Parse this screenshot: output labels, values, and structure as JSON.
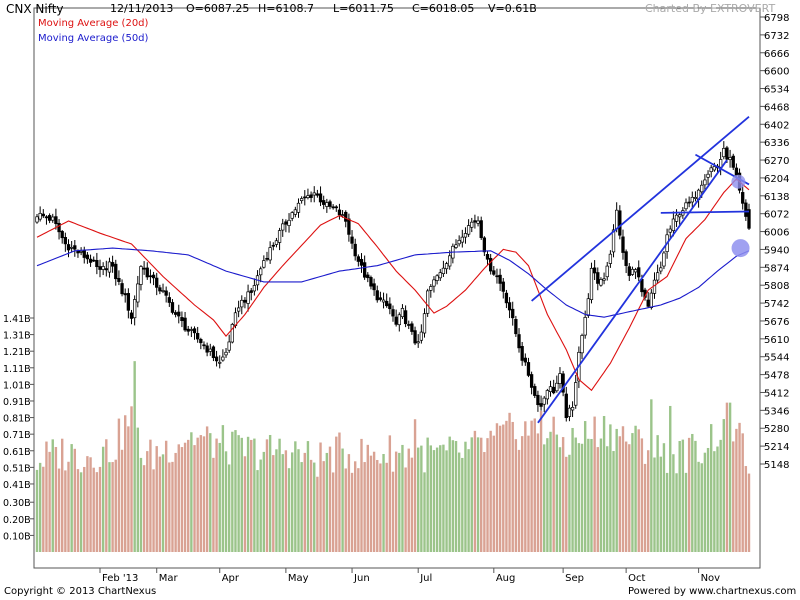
{
  "header": {
    "symbol": "CNX Nifty",
    "date": "12/11/2013",
    "open": "O=6087.25",
    "high": "H=6108.7",
    "low": "L=6011.75",
    "close": "C=6018.05",
    "volume": "V=0.61B",
    "charted_by": "Charted By EXTROVERT"
  },
  "legend": {
    "ma20": "Moving Average (20d)",
    "ma50": "Moving Average (50d)"
  },
  "footer": {
    "copyright": "Copyright © 2013 ChartNexus",
    "powered": "Powered by www.chartnexus.com"
  },
  "colors": {
    "ma20": "#dd1111",
    "ma50": "#1a1acc",
    "trend": "#2233dd",
    "vol_up": "#9bc48a",
    "vol_down": "#d9a293",
    "marker": "#8f90ee"
  },
  "chart_data": {
    "type": "candlestick",
    "price_axis_ticks": [
      "6798",
      "6732",
      "6666",
      "6600",
      "6534",
      "6468",
      "6402",
      "6336",
      "6270",
      "6204",
      "6138",
      "6072",
      "6006",
      "5940",
      "5874",
      "5808",
      "5742",
      "5676",
      "5610",
      "5544",
      "5478",
      "5412",
      "5346",
      "5280",
      "5214",
      "5148"
    ],
    "volume_axis_ticks": [
      "1.41B",
      "1.31B",
      "1.21B",
      "1.11B",
      "1.01B",
      "0.91B",
      "0.81B",
      "0.71B",
      "0.61B",
      "0.51B",
      "0.41B",
      "0.30B",
      "0.20B",
      "0.10B"
    ],
    "x_tick_labels": [
      "Feb '13",
      "Mar",
      "Apr",
      "May",
      "Jun",
      "Jul",
      "Aug",
      "Sep",
      "Oct",
      "Nov"
    ],
    "price_range": [
      5100,
      6798
    ],
    "volume_range": [
      0,
      1.41
    ],
    "price_anchors": [
      [
        0,
        6070
      ],
      [
        5,
        6050
      ],
      [
        9,
        5960
      ],
      [
        13,
        5930
      ],
      [
        17,
        5900
      ],
      [
        20,
        5855
      ],
      [
        23,
        5890
      ],
      [
        25,
        5840
      ],
      [
        28,
        5760
      ],
      [
        30,
        5690
      ],
      [
        33,
        5880
      ],
      [
        36,
        5835
      ],
      [
        40,
        5780
      ],
      [
        44,
        5700
      ],
      [
        48,
        5640
      ],
      [
        52,
        5600
      ],
      [
        55,
        5560
      ],
      [
        58,
        5520
      ],
      [
        60,
        5560
      ],
      [
        62,
        5650
      ],
      [
        64,
        5735
      ],
      [
        68,
        5780
      ],
      [
        72,
        5900
      ],
      [
        76,
        5980
      ],
      [
        80,
        6060
      ],
      [
        84,
        6120
      ],
      [
        88,
        6150
      ],
      [
        92,
        6100
      ],
      [
        95,
        6085
      ],
      [
        98,
        6045
      ],
      [
        100,
        5960
      ],
      [
        103,
        5870
      ],
      [
        106,
        5800
      ],
      [
        109,
        5750
      ],
      [
        112,
        5720
      ],
      [
        114,
        5660
      ],
      [
        116,
        5710
      ],
      [
        118,
        5650
      ],
      [
        120,
        5600
      ],
      [
        122,
        5620
      ],
      [
        124,
        5780
      ],
      [
        127,
        5840
      ],
      [
        131,
        5920
      ],
      [
        135,
        6000
      ],
      [
        138,
        6040
      ],
      [
        140,
        6050
      ],
      [
        143,
        5890
      ],
      [
        146,
        5840
      ],
      [
        148,
        5790
      ],
      [
        150,
        5720
      ],
      [
        152,
        5630
      ],
      [
        154,
        5540
      ],
      [
        156,
        5480
      ],
      [
        158,
        5400
      ],
      [
        160,
        5360
      ],
      [
        162,
        5430
      ],
      [
        164,
        5420
      ],
      [
        166,
        5470
      ],
      [
        168,
        5330
      ],
      [
        170,
        5350
      ],
      [
        172,
        5570
      ],
      [
        174,
        5680
      ],
      [
        176,
        5860
      ],
      [
        178,
        5820
      ],
      [
        180,
        5840
      ],
      [
        182,
        5930
      ],
      [
        184,
        6080
      ],
      [
        186,
        5920
      ],
      [
        188,
        5840
      ],
      [
        190,
        5880
      ],
      [
        192,
        5780
      ],
      [
        194,
        5720
      ],
      [
        196,
        5820
      ],
      [
        198,
        5870
      ],
      [
        200,
        5990
      ],
      [
        202,
        6040
      ],
      [
        204,
        6080
      ],
      [
        206,
        6100
      ],
      [
        208,
        6120
      ],
      [
        210,
        6170
      ],
      [
        212,
        6210
      ],
      [
        214,
        6240
      ],
      [
        216,
        6250
      ],
      [
        218,
        6300
      ],
      [
        220,
        6270
      ],
      [
        222,
        6200
      ],
      [
        224,
        6100
      ],
      [
        226,
        6018
      ]
    ],
    "candle_count": 227,
    "ma20_anchors": [
      [
        0,
        5985
      ],
      [
        10,
        6045
      ],
      [
        20,
        6000
      ],
      [
        30,
        5960
      ],
      [
        40,
        5840
      ],
      [
        50,
        5735
      ],
      [
        56,
        5680
      ],
      [
        60,
        5620
      ],
      [
        66,
        5700
      ],
      [
        72,
        5800
      ],
      [
        78,
        5880
      ],
      [
        84,
        5955
      ],
      [
        90,
        6030
      ],
      [
        96,
        6065
      ],
      [
        102,
        6035
      ],
      [
        108,
        5950
      ],
      [
        114,
        5860
      ],
      [
        120,
        5790
      ],
      [
        126,
        5705
      ],
      [
        130,
        5730
      ],
      [
        136,
        5790
      ],
      [
        142,
        5870
      ],
      [
        148,
        5940
      ],
      [
        152,
        5930
      ],
      [
        156,
        5880
      ],
      [
        162,
        5700
      ],
      [
        168,
        5570
      ],
      [
        172,
        5460
      ],
      [
        176,
        5420
      ],
      [
        182,
        5520
      ],
      [
        188,
        5650
      ],
      [
        194,
        5790
      ],
      [
        200,
        5840
      ],
      [
        206,
        5980
      ],
      [
        212,
        6050
      ],
      [
        218,
        6150
      ],
      [
        222,
        6200
      ],
      [
        226,
        6160
      ]
    ],
    "ma50_anchors": [
      [
        0,
        5880
      ],
      [
        12,
        5935
      ],
      [
        24,
        5945
      ],
      [
        36,
        5935
      ],
      [
        48,
        5920
      ],
      [
        60,
        5860
      ],
      [
        72,
        5820
      ],
      [
        84,
        5820
      ],
      [
        96,
        5860
      ],
      [
        108,
        5880
      ],
      [
        120,
        5920
      ],
      [
        132,
        5930
      ],
      [
        144,
        5935
      ],
      [
        150,
        5900
      ],
      [
        156,
        5850
      ],
      [
        162,
        5790
      ],
      [
        168,
        5735
      ],
      [
        174,
        5700
      ],
      [
        180,
        5690
      ],
      [
        186,
        5705
      ],
      [
        192,
        5720
      ],
      [
        198,
        5735
      ],
      [
        204,
        5760
      ],
      [
        210,
        5800
      ],
      [
        216,
        5860
      ],
      [
        222,
        5915
      ],
      [
        226,
        5935
      ]
    ],
    "volume_anchors": [
      [
        0,
        0.55
      ],
      [
        8,
        0.6
      ],
      [
        16,
        0.58
      ],
      [
        24,
        0.62
      ],
      [
        31,
        0.85
      ],
      [
        34,
        0.55
      ],
      [
        40,
        0.62
      ],
      [
        48,
        0.7
      ],
      [
        56,
        0.66
      ],
      [
        64,
        0.62
      ],
      [
        72,
        0.6
      ],
      [
        80,
        0.62
      ],
      [
        88,
        0.55
      ],
      [
        96,
        0.6
      ],
      [
        104,
        0.58
      ],
      [
        112,
        0.6
      ],
      [
        120,
        0.6
      ],
      [
        128,
        0.58
      ],
      [
        136,
        0.6
      ],
      [
        144,
        0.66
      ],
      [
        150,
        0.72
      ],
      [
        156,
        0.74
      ],
      [
        162,
        0.72
      ],
      [
        168,
        0.65
      ],
      [
        174,
        0.7
      ],
      [
        180,
        0.75
      ],
      [
        186,
        0.7
      ],
      [
        192,
        0.65
      ],
      [
        198,
        0.6
      ],
      [
        204,
        0.58
      ],
      [
        210,
        0.62
      ],
      [
        216,
        0.72
      ],
      [
        220,
        0.78
      ],
      [
        224,
        0.62
      ],
      [
        226,
        0.58
      ]
    ],
    "volume_spikes": [
      [
        31,
        1.15
      ],
      [
        120,
        0.8
      ],
      [
        160,
        0.85
      ],
      [
        195,
        0.92
      ],
      [
        201,
        0.88
      ],
      [
        219,
        0.9
      ],
      [
        220,
        0.9
      ]
    ],
    "trendlines": [
      {
        "from": [
          159,
          5300
        ],
        "to": [
          219,
          6270
        ]
      },
      {
        "from": [
          157,
          5750
        ],
        "to": [
          226,
          6430
        ]
      },
      {
        "from": [
          198,
          6075
        ],
        "to": [
          226,
          6080
        ]
      },
      {
        "from": [
          209,
          6290
        ],
        "to": [
          226,
          6180
        ]
      }
    ],
    "markers": [
      [
        222,
        6190
      ],
      [
        223,
        5945
      ]
    ],
    "month_ticks": [
      [
        20,
        "Feb '13"
      ],
      [
        38,
        "Mar"
      ],
      [
        58,
        "Apr"
      ],
      [
        79,
        "May"
      ],
      [
        100,
        "Jun"
      ],
      [
        121,
        "Jul"
      ],
      [
        145,
        "Aug"
      ],
      [
        167,
        "Sep"
      ],
      [
        187,
        "Oct"
      ],
      [
        210,
        "Nov"
      ]
    ]
  }
}
